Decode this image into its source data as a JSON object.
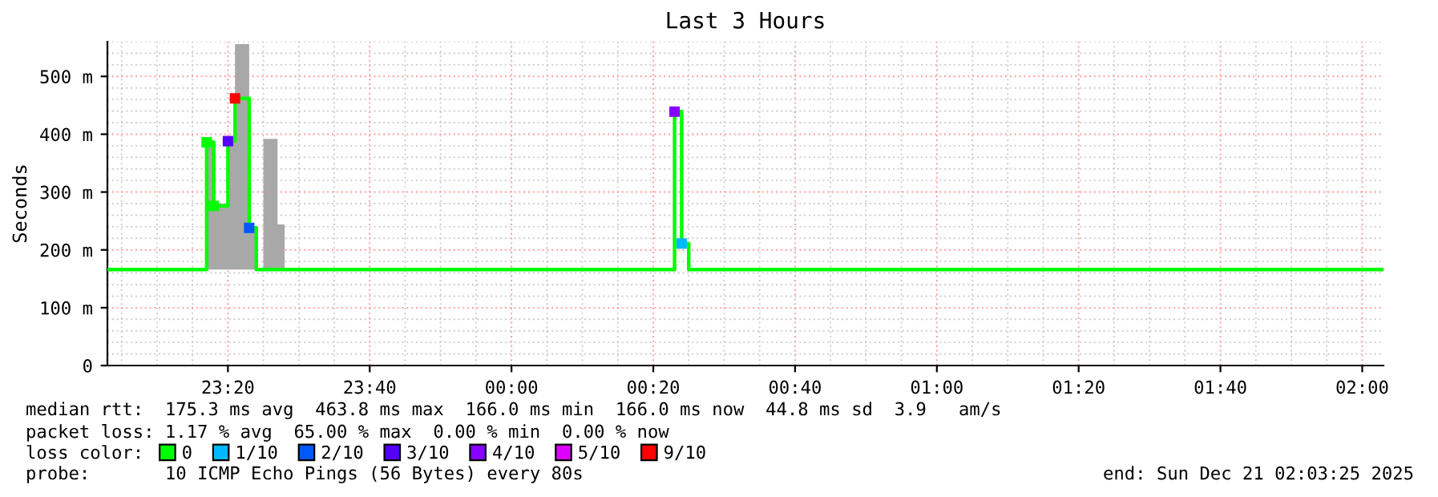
{
  "chart_data": {
    "type": "step",
    "title": "Last 3 Hours",
    "ylabel": "Seconds",
    "legend_title": "loss color:",
    "xlim": [
      "2025-12-20T23:03",
      "2025-12-21T02:03"
    ],
    "xticks": [
      {
        "value": "2025-12-20T23:20",
        "label": "23:20"
      },
      {
        "value": "2025-12-20T23:40",
        "label": "23:40"
      },
      {
        "value": "2025-12-21T00:00",
        "label": "00:00"
      },
      {
        "value": "2025-12-21T00:20",
        "label": "00:20"
      },
      {
        "value": "2025-12-21T00:40",
        "label": "00:40"
      },
      {
        "value": "2025-12-21T01:00",
        "label": "01:00"
      },
      {
        "value": "2025-12-21T01:20",
        "label": "01:20"
      },
      {
        "value": "2025-12-21T01:40",
        "label": "01:40"
      },
      {
        "value": "2025-12-21T02:00",
        "label": "02:00"
      }
    ],
    "ylim": [
      0,
      560
    ],
    "yticks": [
      0,
      {
        "value": 100,
        "label": "100 m"
      },
      {
        "value": 200,
        "label": "200 m"
      },
      {
        "value": 300,
        "label": "300 m"
      },
      {
        "value": 400,
        "label": "400 m"
      },
      {
        "value": 500,
        "label": "500 m"
      }
    ],
    "grid": true,
    "legend": "bottom",
    "series": [
      {
        "color": "#00ff00",
        "x": [
          "2025-12-20T23:03",
          "2025-12-20T23:17",
          "2025-12-20T23:18",
          "2025-12-20T23:20",
          "2025-12-20T23:21",
          "2025-12-20T23:23",
          "2025-12-20T23:24",
          "2025-12-20T23:25",
          "2025-12-20T23:27",
          "2025-12-20T23:28",
          "2025-12-21T00:23",
          "2025-12-21T00:24",
          "2025-12-21T00:25",
          "2025-12-21T02:03"
        ],
        "values": [
          166,
          386,
          276,
          388,
          462,
          238,
          166,
          166,
          166,
          166,
          439,
          211,
          166,
          166
        ],
        "lower": [
          null,
          166,
          166,
          166,
          166,
          166,
          166,
          166,
          166,
          166,
          null,
          null,
          null,
          null
        ],
        "upper": [
          null,
          390,
          280,
          390,
          556,
          240,
          166,
          392,
          244,
          166,
          null,
          null,
          null,
          null
        ]
      },
      {
        "type": "scatter",
        "marker": "square",
        "name": "0",
        "color": "#00ff00",
        "x": [
          "2025-12-20T23:17",
          "2025-12-20T23:18"
        ],
        "values": [
          386,
          276
        ]
      },
      {
        "type": "scatter",
        "marker": "square",
        "name": "1/10",
        "color": "#00b8ff",
        "x": [
          "2025-12-21T00:24"
        ],
        "values": [
          211
        ]
      },
      {
        "type": "scatter",
        "marker": "square",
        "name": "2/10",
        "color": "#0059ff",
        "x": [
          "2025-12-20T23:23"
        ],
        "values": [
          238
        ]
      },
      {
        "type": "scatter",
        "marker": "square",
        "name": "3/10",
        "color": "#5500ff",
        "x": [
          "2025-12-20T23:20"
        ],
        "values": [
          388
        ]
      },
      {
        "type": "scatter",
        "marker": "square",
        "name": "4/10",
        "color": "#8800ff",
        "x": [
          "2025-12-21T00:23"
        ],
        "values": [
          439
        ]
      },
      {
        "type": "scatter",
        "marker": "square",
        "name": "5/10",
        "color": "#dd00ff"
      },
      {
        "type": "scatter",
        "marker": "square",
        "name": "9/10",
        "color": "#ff0000",
        "x": [
          "2025-12-20T23:21"
        ],
        "values": [
          462
        ]
      }
    ],
    "annotations": [
      "median rtt:  175.3 ms avg  463.8 ms max  166.0 ms min  166.0 ms now  44.8 ms sd  3.9   am/s",
      "packet loss: 1.17 % avg  65.00 % max  0.00 % min  0.00 % now",
      "probe:       10 ICMP Echo Pings (56 Bytes) every 80s",
      "end: Sun Dec 21 02:03:25 2025"
    ]
  }
}
